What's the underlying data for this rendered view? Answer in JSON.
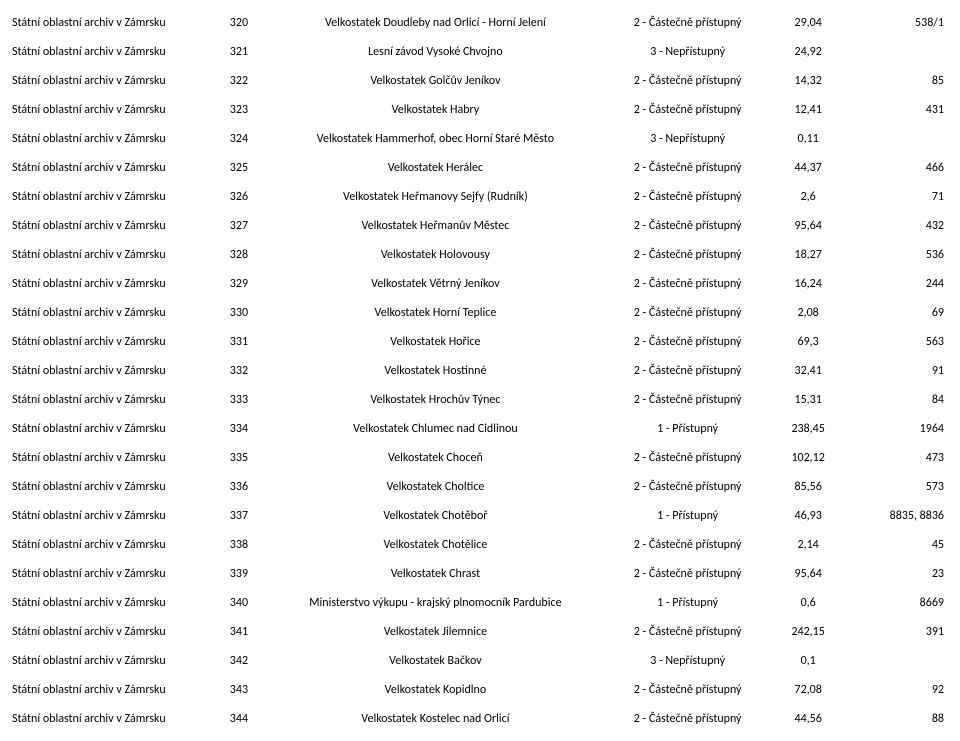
{
  "table": {
    "columns": [
      "archive",
      "num",
      "name",
      "status",
      "size",
      "code"
    ],
    "col_classes": [
      "col-archive",
      "col-num",
      "col-name",
      "col-status",
      "col-size",
      "col-code"
    ],
    "rows": [
      {
        "archive": "Státní oblastní archiv v Zámrsku",
        "num": "320",
        "name": "Velkostatek Doudleby nad Orlicí - Horní Jelení",
        "status": "2 - Částečně přístupný",
        "size": "29,04",
        "code": "538/1"
      },
      {
        "archive": "Státní oblastní archiv v Zámrsku",
        "num": "321",
        "name": "Lesní závod Vysoké Chvojno",
        "status": "3 - Nepřístupný",
        "size": "24,92",
        "code": ""
      },
      {
        "archive": "Státní oblastní archiv v Zámrsku",
        "num": "322",
        "name": "Velkostatek Golčův Jeníkov",
        "status": "2 - Částečně přístupný",
        "size": "14,32",
        "code": "85"
      },
      {
        "archive": "Státní oblastní archiv v Zámrsku",
        "num": "323",
        "name": "Velkostatek Habry",
        "status": "2 - Částečně přístupný",
        "size": "12,41",
        "code": "431"
      },
      {
        "archive": "Státní oblastní archiv v Zámrsku",
        "num": "324",
        "name": "Velkostatek Hammerhof, obec Horní Staré Město",
        "status": "3 - Nepřístupný",
        "size": "0,11",
        "code": ""
      },
      {
        "archive": "Státní oblastní archiv v Zámrsku",
        "num": "325",
        "name": "Velkostatek Herálec",
        "status": "2 - Částečně přístupný",
        "size": "44,37",
        "code": "466"
      },
      {
        "archive": "Státní oblastní archiv v Zámrsku",
        "num": "326",
        "name": "Velkostatek Heřmanovy Sejfy (Rudník)",
        "status": "2 - Částečně přístupný",
        "size": "2,6",
        "code": "71"
      },
      {
        "archive": "Státní oblastní archiv v Zámrsku",
        "num": "327",
        "name": "Velkostatek Heřmanův Městec",
        "status": "2 - Částečně přístupný",
        "size": "95,64",
        "code": "432"
      },
      {
        "archive": "Státní oblastní archiv v Zámrsku",
        "num": "328",
        "name": "Velkostatek Holovousy",
        "status": "2 - Částečně přístupný",
        "size": "18,27",
        "code": "536"
      },
      {
        "archive": "Státní oblastní archiv v Zámrsku",
        "num": "329",
        "name": "Velkostatek Větrný Jeníkov",
        "status": "2 - Částečně přístupný",
        "size": "16,24",
        "code": "244"
      },
      {
        "archive": "Státní oblastní archiv v Zámrsku",
        "num": "330",
        "name": "Velkostatek Horní Teplice",
        "status": "2 - Částečně přístupný",
        "size": "2,08",
        "code": "69"
      },
      {
        "archive": "Státní oblastní archiv v Zámrsku",
        "num": "331",
        "name": "Velkostatek Hořice",
        "status": "2 - Částečně přístupný",
        "size": "69,3",
        "code": "563"
      },
      {
        "archive": "Státní oblastní archiv v Zámrsku",
        "num": "332",
        "name": "Velkostatek Hostinné",
        "status": "2 - Částečně přístupný",
        "size": "32,41",
        "code": "91"
      },
      {
        "archive": "Státní oblastní archiv v Zámrsku",
        "num": "333",
        "name": "Velkostatek Hrochův Týnec",
        "status": "2 - Částečně přístupný",
        "size": "15,31",
        "code": "84"
      },
      {
        "archive": "Státní oblastní archiv v Zámrsku",
        "num": "334",
        "name": "Velkostatek Chlumec nad Cidlinou",
        "status": "1 - Přístupný",
        "size": "238,45",
        "code": "1964"
      },
      {
        "archive": "Státní oblastní archiv v Zámrsku",
        "num": "335",
        "name": "Velkostatek Choceň",
        "status": "2 - Částečně přístupný",
        "size": "102,12",
        "code": "473"
      },
      {
        "archive": "Státní oblastní archiv v Zámrsku",
        "num": "336",
        "name": "Velkostatek Choltice",
        "status": "2 - Částečně přístupný",
        "size": "85,56",
        "code": "573"
      },
      {
        "archive": "Státní oblastní archiv v Zámrsku",
        "num": "337",
        "name": "Velkostatek Chotěboř",
        "status": "1 - Přístupný",
        "size": "46,93",
        "code": "8835, 8836"
      },
      {
        "archive": "Státní oblastní archiv v Zámrsku",
        "num": "338",
        "name": "Velkostatek Chotělice",
        "status": "2 - Částečně přístupný",
        "size": "2,14",
        "code": "45"
      },
      {
        "archive": "Státní oblastní archiv v Zámrsku",
        "num": "339",
        "name": "Velkostatek Chrast",
        "status": "2 - Částečně přístupný",
        "size": "95,64",
        "code": "23"
      },
      {
        "archive": "Státní oblastní archiv v Zámrsku",
        "num": "340",
        "name": "Ministerstvo výkupu - krajský plnomocník Pardubice",
        "status": "1 - Přístupný",
        "size": "0,6",
        "code": "8669"
      },
      {
        "archive": "Státní oblastní archiv v Zámrsku",
        "num": "341",
        "name": "Velkostatek Jilemnice",
        "status": "2 - Částečně přístupný",
        "size": "242,15",
        "code": "391"
      },
      {
        "archive": "Státní oblastní archiv v Zámrsku",
        "num": "342",
        "name": "Velkostatek Bačkov",
        "status": "3 - Nepřístupný",
        "size": "0,1",
        "code": ""
      },
      {
        "archive": "Státní oblastní archiv v Zámrsku",
        "num": "343",
        "name": "Velkostatek Kopidlno",
        "status": "2 - Částečně přístupný",
        "size": "72,08",
        "code": "92"
      },
      {
        "archive": "Státní oblastní archiv v Zámrsku",
        "num": "344",
        "name": "Velkostatek Kostelec nad Orlicí",
        "status": "2 - Částečně přístupný",
        "size": "44,56",
        "code": "88"
      }
    ]
  }
}
